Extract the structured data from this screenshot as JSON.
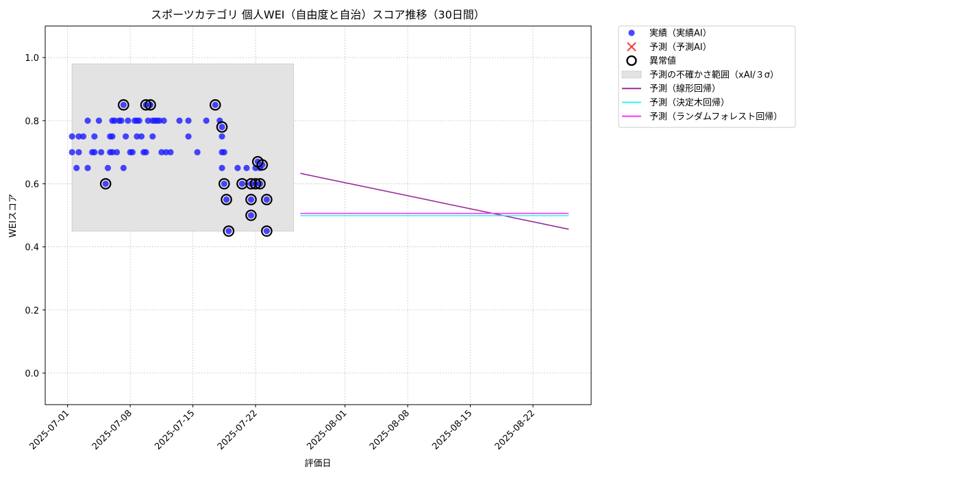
{
  "chart_data": {
    "type": "scatter",
    "title": "スポーツカテゴリ 個人WEI（自由度と自治）スコア推移（30日間）",
    "xlabel": "評価日",
    "ylabel": "WEIスコア",
    "x_is_date": true,
    "xlim": [
      "2025-06-28T12:00",
      "2025-08-28T12:00"
    ],
    "ylim": [
      -0.1,
      1.1
    ],
    "x_ticks": [
      "2025-07-01",
      "2025-07-08",
      "2025-07-15",
      "2025-07-22",
      "2025-08-01",
      "2025-08-08",
      "2025-08-15",
      "2025-08-22"
    ],
    "y_ticks": [
      0.0,
      0.2,
      0.4,
      0.6,
      0.8,
      1.0
    ],
    "y_tick_labels": [
      "0.0",
      "0.2",
      "0.4",
      "0.6",
      "0.8",
      "1.0"
    ],
    "grid": true,
    "legend_position": "outside-top-right",
    "uncertainty_band": {
      "name": "予測の不確かさ範囲（xAI/３σ）",
      "x_start": "2025-07-01T12:00",
      "x_end": "2025-07-26T06:00",
      "y_low": 0.45,
      "y_high": 0.98,
      "color": "#e3e3e3"
    },
    "series": [
      {
        "name": "実績（実績AI）",
        "kind": "scatter",
        "color": "#1a1aff",
        "points": [
          [
            "2025-07-01T12:00",
            0.75
          ],
          [
            "2025-07-01T12:00",
            0.7
          ],
          [
            "2025-07-02T00:00",
            0.65
          ],
          [
            "2025-07-02T06:00",
            0.75
          ],
          [
            "2025-07-02T06:00",
            0.7
          ],
          [
            "2025-07-02T18:00",
            0.75
          ],
          [
            "2025-07-03T06:00",
            0.8
          ],
          [
            "2025-07-03T06:00",
            0.65
          ],
          [
            "2025-07-03T18:00",
            0.7
          ],
          [
            "2025-07-04T00:00",
            0.75
          ],
          [
            "2025-07-04T00:00",
            0.7
          ],
          [
            "2025-07-04T12:00",
            0.8
          ],
          [
            "2025-07-04T18:00",
            0.7
          ],
          [
            "2025-07-05T06:00",
            0.6
          ],
          [
            "2025-07-05T12:00",
            0.65
          ],
          [
            "2025-07-05T18:00",
            0.75
          ],
          [
            "2025-07-05T18:00",
            0.7
          ],
          [
            "2025-07-06T00:00",
            0.8
          ],
          [
            "2025-07-06T00:00",
            0.75
          ],
          [
            "2025-07-06T00:00",
            0.7
          ],
          [
            "2025-07-06T06:00",
            0.8
          ],
          [
            "2025-07-06T12:00",
            0.7
          ],
          [
            "2025-07-06T18:00",
            0.8
          ],
          [
            "2025-07-07T00:00",
            0.8
          ],
          [
            "2025-07-07T06:00",
            0.85
          ],
          [
            "2025-07-07T06:00",
            0.65
          ],
          [
            "2025-07-07T12:00",
            0.75
          ],
          [
            "2025-07-07T18:00",
            0.8
          ],
          [
            "2025-07-08T00:00",
            0.7
          ],
          [
            "2025-07-08T06:00",
            0.7
          ],
          [
            "2025-07-08T12:00",
            0.8
          ],
          [
            "2025-07-08T18:00",
            0.75
          ],
          [
            "2025-07-08T18:00",
            0.8
          ],
          [
            "2025-07-09T00:00",
            0.8
          ],
          [
            "2025-07-09T06:00",
            0.75
          ],
          [
            "2025-07-09T12:00",
            0.7
          ],
          [
            "2025-07-09T18:00",
            0.85
          ],
          [
            "2025-07-09T18:00",
            0.7
          ],
          [
            "2025-07-10T00:00",
            0.8
          ],
          [
            "2025-07-10T06:00",
            0.85
          ],
          [
            "2025-07-10T12:00",
            0.8
          ],
          [
            "2025-07-10T12:00",
            0.75
          ],
          [
            "2025-07-10T18:00",
            0.8
          ],
          [
            "2025-07-11T00:00",
            0.8
          ],
          [
            "2025-07-11T06:00",
            0.8
          ],
          [
            "2025-07-11T12:00",
            0.7
          ],
          [
            "2025-07-11T18:00",
            0.8
          ],
          [
            "2025-07-12T00:00",
            0.7
          ],
          [
            "2025-07-12T12:00",
            0.7
          ],
          [
            "2025-07-13T12:00",
            0.8
          ],
          [
            "2025-07-14T12:00",
            0.8
          ],
          [
            "2025-07-14T12:00",
            0.75
          ],
          [
            "2025-07-15T12:00",
            0.7
          ],
          [
            "2025-07-16T12:00",
            0.8
          ],
          [
            "2025-07-17T12:00",
            0.85
          ],
          [
            "2025-07-18T00:00",
            0.8
          ],
          [
            "2025-07-18T06:00",
            0.78
          ],
          [
            "2025-07-18T06:00",
            0.75
          ],
          [
            "2025-07-18T06:00",
            0.7
          ],
          [
            "2025-07-18T06:00",
            0.65
          ],
          [
            "2025-07-18T12:00",
            0.7
          ],
          [
            "2025-07-18T12:00",
            0.6
          ],
          [
            "2025-07-18T18:00",
            0.55
          ],
          [
            "2025-07-19T00:00",
            0.45
          ],
          [
            "2025-07-20T00:00",
            0.65
          ],
          [
            "2025-07-20T12:00",
            0.6
          ],
          [
            "2025-07-21T00:00",
            0.65
          ],
          [
            "2025-07-21T12:00",
            0.55
          ],
          [
            "2025-07-21T12:00",
            0.5
          ],
          [
            "2025-07-21T12:00",
            0.6
          ],
          [
            "2025-07-22T00:00",
            0.65
          ],
          [
            "2025-07-22T00:00",
            0.6
          ],
          [
            "2025-07-22T06:00",
            0.67
          ],
          [
            "2025-07-22T12:00",
            0.65
          ],
          [
            "2025-07-22T12:00",
            0.6
          ],
          [
            "2025-07-22T18:00",
            0.66
          ],
          [
            "2025-07-23T06:00",
            0.55
          ],
          [
            "2025-07-23T06:00",
            0.45
          ]
        ]
      },
      {
        "name": "予測（予測AI）",
        "kind": "scatter-x",
        "color": "#ff3333",
        "points": []
      },
      {
        "name": "異常値",
        "kind": "outlier-ring",
        "color": "#000000",
        "points": [
          [
            "2025-07-05T06:00",
            0.6
          ],
          [
            "2025-07-07T06:00",
            0.85
          ],
          [
            "2025-07-09T18:00",
            0.85
          ],
          [
            "2025-07-10T06:00",
            0.85
          ],
          [
            "2025-07-17T12:00",
            0.85
          ],
          [
            "2025-07-18T06:00",
            0.78
          ],
          [
            "2025-07-18T12:00",
            0.6
          ],
          [
            "2025-07-18T18:00",
            0.55
          ],
          [
            "2025-07-19T00:00",
            0.45
          ],
          [
            "2025-07-20T12:00",
            0.6
          ],
          [
            "2025-07-21T12:00",
            0.55
          ],
          [
            "2025-07-21T12:00",
            0.5
          ],
          [
            "2025-07-21T12:00",
            0.6
          ],
          [
            "2025-07-22T00:00",
            0.6
          ],
          [
            "2025-07-22T06:00",
            0.67
          ],
          [
            "2025-07-22T12:00",
            0.6
          ],
          [
            "2025-07-22T18:00",
            0.66
          ],
          [
            "2025-07-23T06:00",
            0.55
          ],
          [
            "2025-07-23T06:00",
            0.45
          ]
        ]
      },
      {
        "name": "予測（線形回帰）",
        "kind": "line",
        "color": "#9a2a9a",
        "points": [
          [
            "2025-07-27T00:00",
            0.633
          ],
          [
            "2025-08-26T00:00",
            0.456
          ]
        ]
      },
      {
        "name": "予測（決定木回帰）",
        "kind": "line",
        "color": "#33f0f0",
        "points": [
          [
            "2025-07-27T00:00",
            0.499
          ],
          [
            "2025-08-26T00:00",
            0.499
          ]
        ]
      },
      {
        "name": "予測（ランダムフォレスト回帰）",
        "kind": "line",
        "color": "#ff33ff",
        "points": [
          [
            "2025-07-27T00:00",
            0.506
          ],
          [
            "2025-08-26T00:00",
            0.506
          ]
        ]
      }
    ]
  }
}
